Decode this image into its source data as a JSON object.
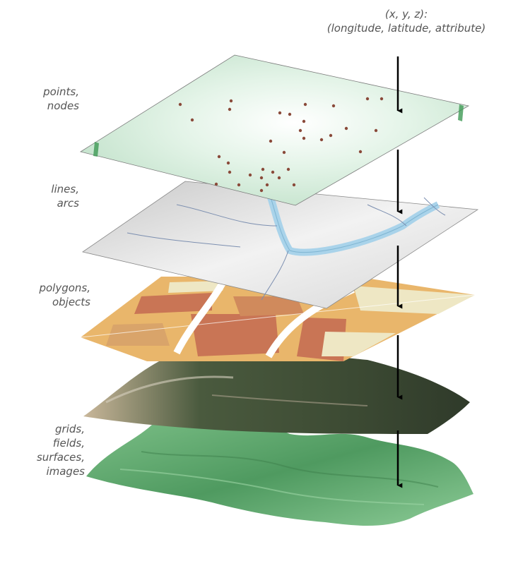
{
  "header": {
    "line1": "(x, y, z):",
    "line2": "(longitude, latitude, attribute)"
  },
  "layers": [
    {
      "id": "points",
      "lines": [
        "points,",
        "nodes"
      ]
    },
    {
      "id": "lines",
      "lines": [
        "lines,",
        "arcs"
      ]
    },
    {
      "id": "polygons",
      "lines": [
        "polygons,",
        "objects"
      ]
    },
    {
      "id": "grids",
      "lines": [
        "grids,",
        "fields,",
        "surfaces,",
        "images"
      ]
    }
  ],
  "colors": {
    "points_plane": "#d9efdf",
    "point_marker": "#8a4a3a",
    "lines_plane": "#e6e6e6",
    "river": "#a9d3ea",
    "polygon_orange": "#e9b66b",
    "polygon_red": "#c97555",
    "polygon_pale": "#eee7c4",
    "terrain": "#5fa86d",
    "arrow": "#000000"
  }
}
